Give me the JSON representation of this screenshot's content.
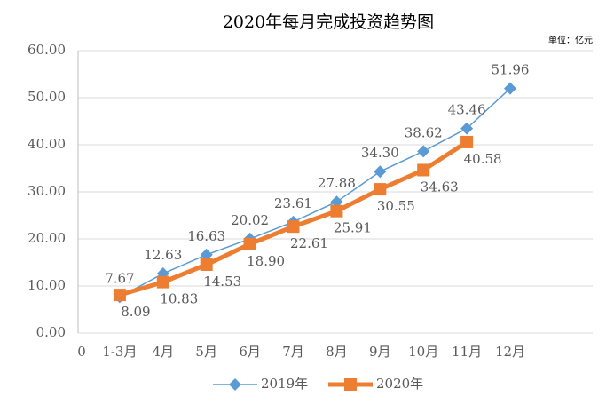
{
  "chart_data": {
    "type": "line",
    "title": "2020年每月完成投资趋势图",
    "annotation": "单位：亿元",
    "categories": [
      "0",
      "1-3月",
      "4月",
      "5月",
      "6月",
      "7月",
      "8月",
      "9月",
      "10月",
      "11月",
      "12月"
    ],
    "series": [
      {
        "name": "2019年",
        "color": "#5b9bd5",
        "marker": "diamond",
        "values": [
          null,
          7.67,
          12.63,
          16.63,
          20.02,
          23.61,
          27.88,
          34.3,
          38.62,
          43.46,
          51.96
        ],
        "value_labels": [
          null,
          "7.67",
          "12.63",
          "16.63",
          "20.02",
          "23.61",
          "27.88",
          "34.30",
          "38.62",
          "43.46",
          "51.96"
        ]
      },
      {
        "name": "2020年",
        "color": "#ed7d31",
        "marker": "square",
        "values": [
          null,
          8.09,
          10.83,
          14.53,
          18.9,
          22.61,
          25.91,
          30.55,
          34.63,
          40.58,
          null
        ],
        "value_labels": [
          null,
          "8.09",
          "10.83",
          "14.53",
          "18.90",
          "22.61",
          "25.91",
          "30.55",
          "34.63",
          "40.58",
          null
        ]
      }
    ],
    "ylim": [
      0,
      60
    ],
    "yticks": [
      {
        "value": 0,
        "label": "0.00"
      },
      {
        "value": 10,
        "label": "10.00"
      },
      {
        "value": 20,
        "label": "20.00"
      },
      {
        "value": 30,
        "label": "30.00"
      },
      {
        "value": 40,
        "label": "40.00"
      },
      {
        "value": 50,
        "label": "50.00"
      },
      {
        "value": 60,
        "label": "60.00"
      }
    ],
    "grid": true,
    "legend": "bottom"
  }
}
